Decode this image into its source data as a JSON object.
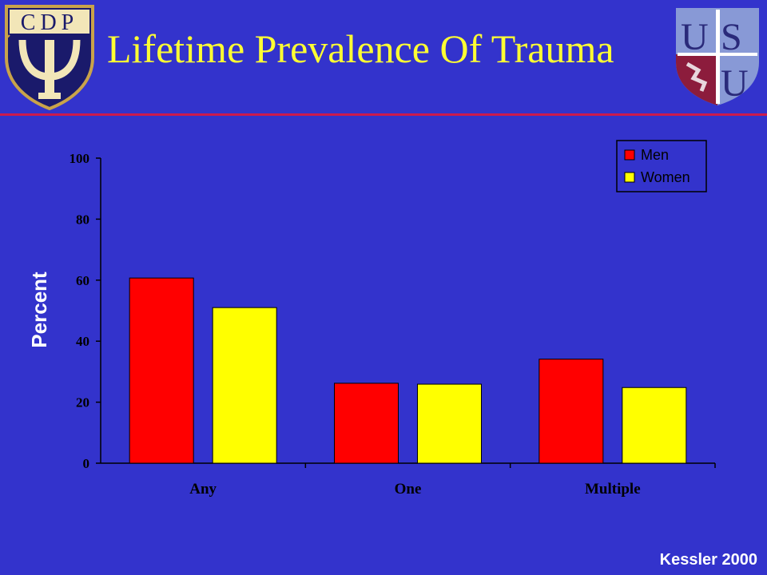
{
  "slide": {
    "title": "Lifetime Prevalence Of Trauma",
    "source": "Kessler 2000",
    "left_logo_text": "CDP",
    "right_logo_text": "USU"
  },
  "colors": {
    "background": "#3333CC",
    "title": "#FFFF33",
    "rule": "#CC1A4D",
    "men": "#FF0000",
    "women": "#FFFF00"
  },
  "chart_data": {
    "type": "bar",
    "categories": [
      "Any",
      "One",
      "Multiple"
    ],
    "series": [
      {
        "name": "Men",
        "values": [
          60.7,
          26.2,
          34.1
        ]
      },
      {
        "name": "Women",
        "values": [
          51.0,
          25.9,
          24.8
        ]
      }
    ],
    "title": "",
    "xlabel": "",
    "ylabel": "Percent",
    "ylim": [
      0,
      100
    ],
    "yticks": [
      0,
      20,
      40,
      60,
      80,
      100
    ],
    "grid": false,
    "legend_position": "top-right"
  }
}
